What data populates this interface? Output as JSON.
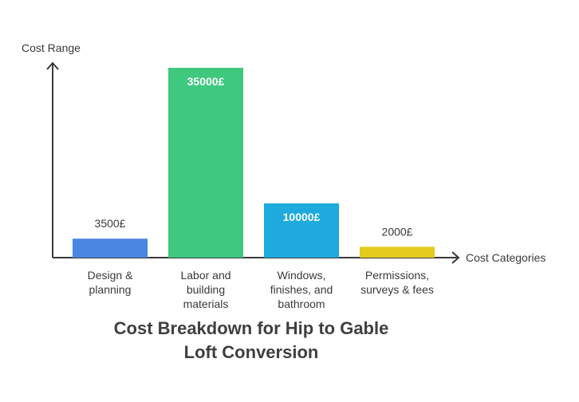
{
  "chart_data": {
    "type": "bar",
    "title_lines": [
      "Cost Breakdown for Hip to Gable",
      "Loft Conversion"
    ],
    "xlabel": "Cost Categories",
    "ylabel": "Cost Range",
    "categories": [
      [
        "Design &",
        "planning"
      ],
      [
        "Labor and",
        "building",
        "materials"
      ],
      [
        "Windows,",
        "finishes, and",
        "bathroom"
      ],
      [
        "Permissions,",
        "surveys & fees"
      ]
    ],
    "values": [
      3500,
      35000,
      10000,
      2000
    ],
    "value_labels": [
      "3500£",
      "35000£",
      "10000£",
      "2000£"
    ],
    "label_inside": [
      false,
      true,
      true,
      false
    ],
    "colors": [
      "#4a87e3",
      "#3ec97f",
      "#1eaadd",
      "#e4cb1e"
    ],
    "ylim": [
      0,
      35000
    ],
    "grid": false,
    "legend": "none"
  }
}
